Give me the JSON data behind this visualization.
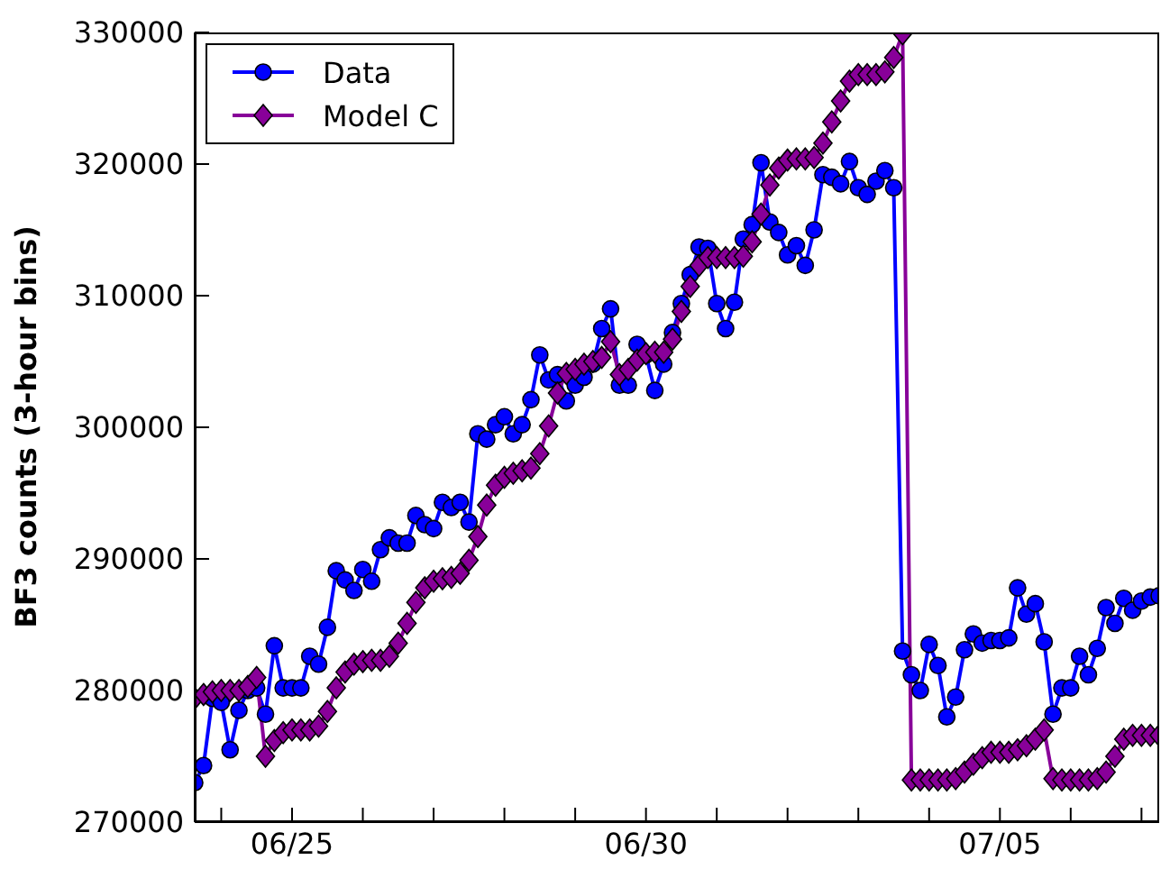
{
  "chart_data": {
    "type": "line",
    "ylabel": "BF3 counts (3-hour bins)",
    "x": [
      "--06-23T15:00",
      "--06-23T18:00",
      "--06-23T21:00",
      "--06-24T00:00",
      "--06-24T03:00",
      "--06-24T06:00",
      "--06-24T09:00",
      "--06-24T12:00",
      "--06-24T15:00",
      "--06-24T18:00",
      "--06-24T21:00",
      "--06-25T00:00",
      "--06-25T03:00",
      "--06-25T06:00",
      "--06-25T09:00",
      "--06-25T12:00",
      "--06-25T15:00",
      "--06-25T18:00",
      "--06-25T21:00",
      "--06-26T00:00",
      "--06-26T03:00",
      "--06-26T06:00",
      "--06-26T09:00",
      "--06-26T12:00",
      "--06-26T15:00",
      "--06-26T18:00",
      "--06-26T21:00",
      "--06-27T00:00",
      "--06-27T03:00",
      "--06-27T06:00",
      "--06-27T09:00",
      "--06-27T12:00",
      "--06-27T15:00",
      "--06-27T18:00",
      "--06-27T21:00",
      "--06-28T00:00",
      "--06-28T03:00",
      "--06-28T06:00",
      "--06-28T09:00",
      "--06-28T12:00",
      "--06-28T15:00",
      "--06-28T18:00",
      "--06-28T21:00",
      "--06-29T00:00",
      "--06-29T03:00",
      "--06-29T06:00",
      "--06-29T09:00",
      "--06-29T12:00",
      "--06-29T15:00",
      "--06-29T18:00",
      "--06-29T21:00",
      "--06-30T00:00",
      "--06-30T03:00",
      "--06-30T06:00",
      "--06-30T09:00",
      "--06-30T12:00",
      "--06-30T15:00",
      "--06-30T18:00",
      "--06-30T21:00",
      "--07-01T00:00",
      "--07-01T03:00",
      "--07-01T06:00",
      "--07-01T09:00",
      "--07-01T12:00",
      "--07-01T15:00",
      "--07-01T18:00",
      "--07-01T21:00",
      "--07-02T00:00",
      "--07-02T03:00",
      "--07-02T06:00",
      "--07-02T09:00",
      "--07-02T12:00",
      "--07-02T15:00",
      "--07-02T18:00",
      "--07-02T21:00",
      "--07-03T00:00",
      "--07-03T03:00",
      "--07-03T06:00",
      "--07-03T09:00",
      "--07-03T12:00",
      "--07-03T15:00",
      "--07-03T18:00",
      "--07-03T21:00",
      "--07-04T00:00",
      "--07-04T03:00",
      "--07-04T06:00",
      "--07-04T09:00",
      "--07-04T12:00",
      "--07-04T15:00",
      "--07-04T18:00",
      "--07-04T21:00",
      "--07-05T00:00",
      "--07-05T03:00",
      "--07-05T06:00",
      "--07-05T09:00",
      "--07-05T12:00",
      "--07-05T15:00",
      "--07-05T18:00",
      "--07-05T21:00",
      "--07-06T00:00",
      "--07-06T03:00",
      "--07-06T06:00",
      "--07-06T09:00",
      "--07-06T12:00",
      "--07-06T15:00",
      "--07-06T18:00",
      "--07-06T21:00",
      "--07-07T00:00",
      "--07-07T03:00",
      "--07-07T06:00"
    ],
    "series": [
      {
        "name": "Data",
        "color": "#0000ff",
        "marker": "circle",
        "values": [
          273000,
          274300,
          279400,
          279100,
          275500,
          278500,
          280000,
          280200,
          278200,
          283400,
          280200,
          280200,
          280200,
          282600,
          282000,
          284800,
          289100,
          288400,
          287600,
          289200,
          288300,
          290700,
          291600,
          291200,
          291200,
          293300,
          292600,
          292300,
          294300,
          293900,
          294300,
          292800,
          299500,
          299100,
          300200,
          300800,
          299500,
          300200,
          302100,
          305500,
          303600,
          304000,
          302000,
          303200,
          303800,
          304800,
          307500,
          309000,
          303200,
          303200,
          306300,
          305500,
          302800,
          304800,
          307200,
          309400,
          311600,
          313700,
          313600,
          309400,
          307500,
          309500,
          314300,
          315400,
          320100,
          315600,
          314800,
          313100,
          313800,
          312300,
          315000,
          319200,
          319000,
          318500,
          320200,
          318200,
          317700,
          318700,
          319500,
          318200,
          283000,
          281200,
          280000,
          283500,
          281900,
          278000,
          279500,
          283100,
          284300,
          283600,
          283800,
          283800,
          284000,
          287800,
          285800,
          286600,
          283700,
          278200,
          280200,
          280200,
          282600,
          281200,
          283200,
          286300,
          285100,
          287000,
          286100,
          286800,
          287100,
          287200
        ]
      },
      {
        "name": "Model C",
        "color": "#880099",
        "marker": "diamond",
        "values": [
          279400,
          279700,
          279900,
          280000,
          280000,
          280000,
          280300,
          281000,
          275000,
          276200,
          276800,
          277000,
          277000,
          277000,
          277300,
          278400,
          280200,
          281400,
          282000,
          282200,
          282300,
          282300,
          282600,
          283600,
          285100,
          286700,
          287800,
          288300,
          288500,
          288600,
          288900,
          289900,
          291700,
          294100,
          295600,
          296200,
          296500,
          296700,
          296900,
          298000,
          300100,
          302600,
          304100,
          304400,
          304800,
          305000,
          305300,
          306500,
          304000,
          304400,
          305100,
          305600,
          305700,
          305700,
          306700,
          308800,
          310700,
          312300,
          312900,
          312900,
          312900,
          312900,
          313000,
          314100,
          316200,
          318400,
          319700,
          320300,
          320400,
          320400,
          320500,
          321600,
          323200,
          324800,
          326300,
          326800,
          326800,
          326800,
          327000,
          328100,
          329900,
          273200,
          273200,
          273200,
          273200,
          273200,
          273300,
          273800,
          274400,
          274900,
          275300,
          275300,
          275300,
          275500,
          275800,
          276300,
          277000,
          273300,
          273200,
          273200,
          273200,
          273200,
          273300,
          273800,
          275000,
          276300,
          276600,
          276600,
          276600,
          276600
        ]
      }
    ],
    "xlim": [
      "--06-23T15:00",
      "--07-07T06:00"
    ],
    "xticks": [
      {
        "value": "--06-24",
        "label": null
      },
      {
        "value": "--06-25",
        "label": "06/25"
      },
      {
        "value": "--06-26",
        "label": null
      },
      {
        "value": "--06-27",
        "label": null
      },
      {
        "value": "--06-28",
        "label": null
      },
      {
        "value": "--06-29",
        "label": null
      },
      {
        "value": "--06-30",
        "label": "06/30"
      },
      {
        "value": "--07-01",
        "label": null
      },
      {
        "value": "--07-02",
        "label": null
      },
      {
        "value": "--07-03",
        "label": null
      },
      {
        "value": "--07-04",
        "label": null
      },
      {
        "value": "--07-05",
        "label": "07/05"
      },
      {
        "value": "--07-06",
        "label": null
      },
      {
        "value": "--07-07",
        "label": null
      }
    ],
    "ylim": [
      270000,
      330000
    ],
    "yticks": [
      270000,
      280000,
      290000,
      300000,
      310000,
      320000,
      330000
    ],
    "grid": false,
    "legend": "top left",
    "line_style": "solid"
  }
}
